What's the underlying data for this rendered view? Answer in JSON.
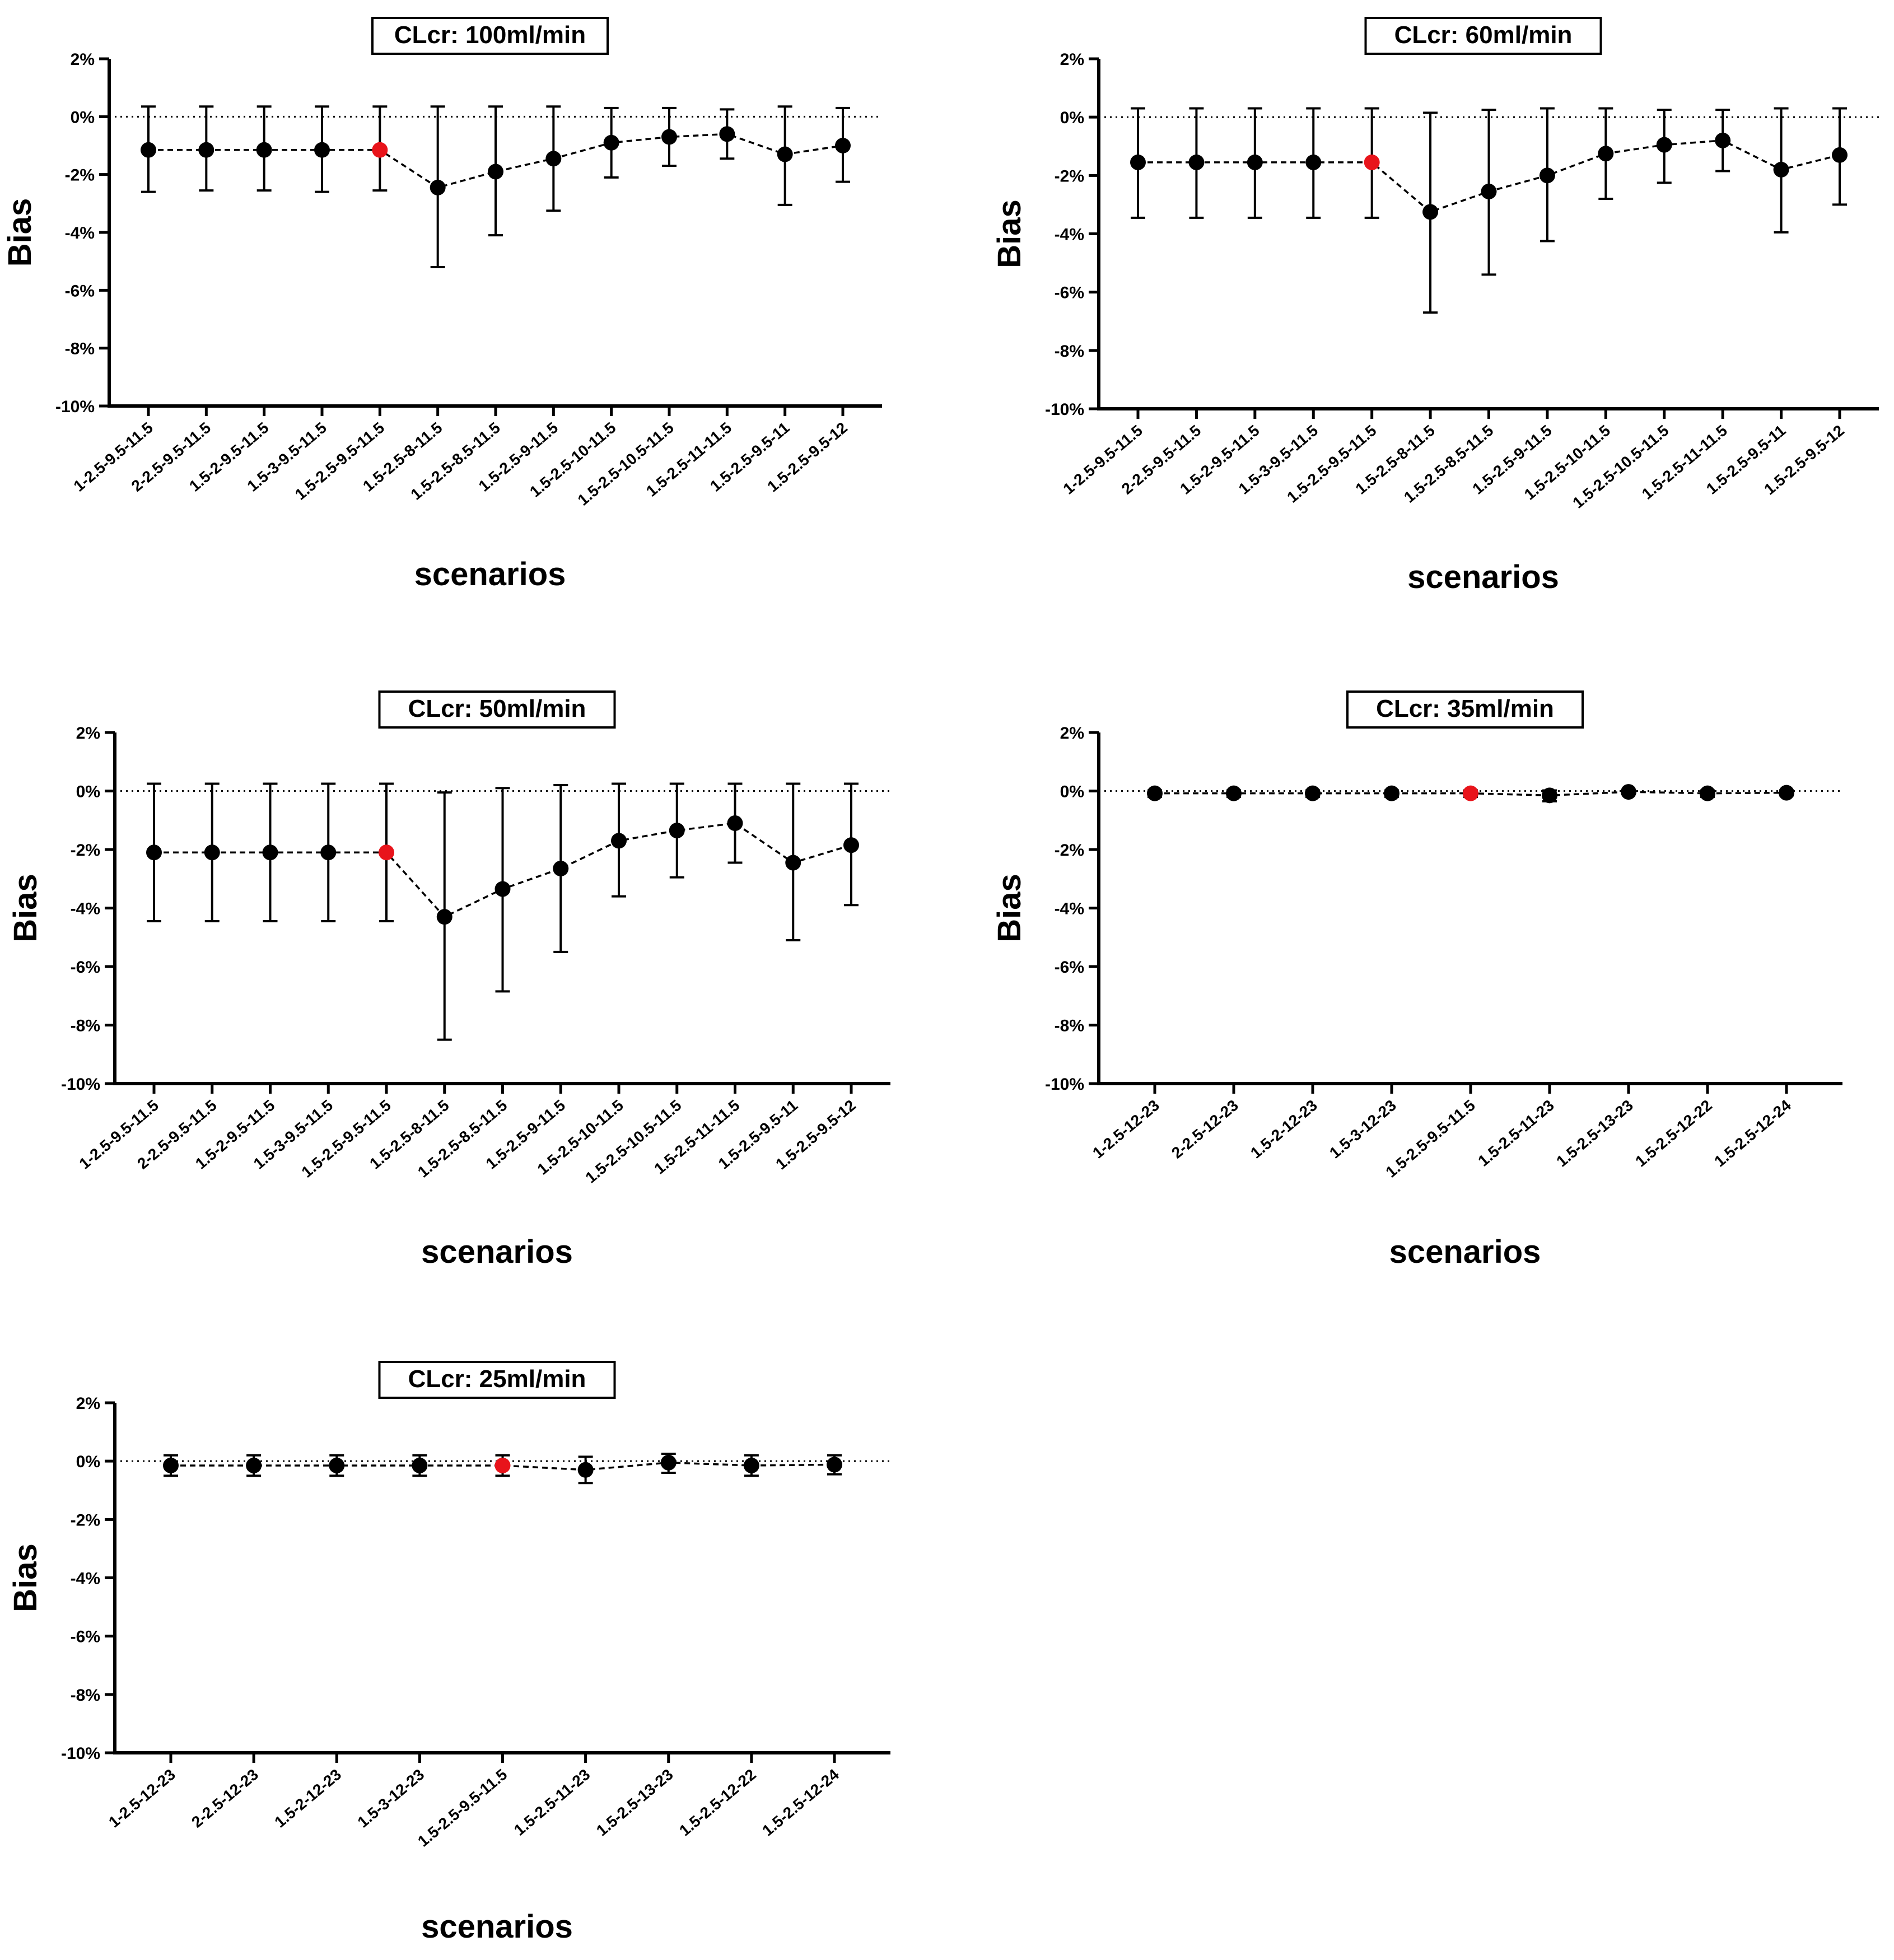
{
  "chart_data": [
    {
      "type": "scatter",
      "title": "CLcr: 100ml/min",
      "xlabel": "scenarios",
      "ylabel": "Bias",
      "ylim": [
        -10,
        2
      ],
      "yticks": [
        "2%",
        "0%",
        "-2%",
        "-4%",
        "-6%",
        "-8%",
        "-10%"
      ],
      "reference_line_y": 0,
      "highlight_index": 4,
      "highlight_color": "#e8141b",
      "point_color": "#000000",
      "categories": [
        "1-2.5-9.5-11.5",
        "2-2.5-9.5-11.5",
        "1.5-2-9.5-11.5",
        "1.5-3-9.5-11.5",
        "1.5-2.5-9.5-11.5",
        "1.5-2.5-8-11.5",
        "1.5-2.5-8.5-11.5",
        "1.5-2.5-9-11.5",
        "1.5-2.5-10-11.5",
        "1.5-2.5-10.5-11.5",
        "1.5-2.5-11-11.5",
        "1.5-2.5-9.5-11",
        "1.5-2.5-9.5-12"
      ],
      "values": [
        -1.15,
        -1.15,
        -1.15,
        -1.15,
        -1.15,
        -2.45,
        -1.9,
        -1.45,
        -0.9,
        -0.7,
        -0.6,
        -1.3,
        -1.0
      ],
      "err_low": [
        -2.6,
        -2.55,
        -2.55,
        -2.6,
        -2.55,
        -5.2,
        -4.1,
        -3.25,
        -2.1,
        -1.7,
        -1.45,
        -3.05,
        -2.25
      ],
      "err_high": [
        0.35,
        0.35,
        0.35,
        0.35,
        0.35,
        0.35,
        0.35,
        0.35,
        0.3,
        0.3,
        0.25,
        0.35,
        0.3
      ]
    },
    {
      "type": "scatter",
      "title": "CLcr: 60ml/min",
      "xlabel": "scenarios",
      "ylabel": "Bias",
      "ylim": [
        -10,
        2
      ],
      "yticks": [
        "2%",
        "0%",
        "-2%",
        "-4%",
        "-6%",
        "-8%",
        "-10%"
      ],
      "reference_line_y": 0,
      "highlight_index": 4,
      "highlight_color": "#e8141b",
      "point_color": "#000000",
      "categories": [
        "1-2.5-9.5-11.5",
        "2-2.5-9.5-11.5",
        "1.5-2-9.5-11.5",
        "1.5-3-9.5-11.5",
        "1.5-2.5-9.5-11.5",
        "1.5-2.5-8-11.5",
        "1.5-2.5-8.5-11.5",
        "1.5-2.5-9-11.5",
        "1.5-2.5-10-11.5",
        "1.5-2.5-10.5-11.5",
        "1.5-2.5-11-11.5",
        "1.5-2.5-9.5-11",
        "1.5-2.5-9.5-12"
      ],
      "values": [
        -1.55,
        -1.55,
        -1.55,
        -1.55,
        -1.55,
        -3.25,
        -2.55,
        -2.0,
        -1.25,
        -0.95,
        -0.8,
        -1.8,
        -1.3
      ],
      "err_low": [
        -3.45,
        -3.45,
        -3.45,
        -3.45,
        -3.45,
        -6.7,
        -5.4,
        -4.25,
        -2.8,
        -2.25,
        -1.85,
        -3.95,
        -3.0
      ],
      "err_high": [
        0.3,
        0.3,
        0.3,
        0.3,
        0.3,
        0.15,
        0.25,
        0.3,
        0.3,
        0.25,
        0.25,
        0.3,
        0.3
      ]
    },
    {
      "type": "scatter",
      "title": "CLcr: 50ml/min",
      "xlabel": "scenarios",
      "ylabel": "Bias",
      "ylim": [
        -10,
        2
      ],
      "yticks": [
        "2%",
        "0%",
        "-2%",
        "-4%",
        "-6%",
        "-8%",
        "-10%"
      ],
      "reference_line_y": 0,
      "highlight_index": 4,
      "highlight_color": "#e8141b",
      "point_color": "#000000",
      "categories": [
        "1-2.5-9.5-11.5",
        "2-2.5-9.5-11.5",
        "1.5-2-9.5-11.5",
        "1.5-3-9.5-11.5",
        "1.5-2.5-9.5-11.5",
        "1.5-2.5-8-11.5",
        "1.5-2.5-8.5-11.5",
        "1.5-2.5-9-11.5",
        "1.5-2.5-10-11.5",
        "1.5-2.5-10.5-11.5",
        "1.5-2.5-11-11.5",
        "1.5-2.5-9.5-11",
        "1.5-2.5-9.5-12"
      ],
      "values": [
        -2.1,
        -2.1,
        -2.1,
        -2.1,
        -2.1,
        -4.3,
        -3.35,
        -2.65,
        -1.7,
        -1.35,
        -1.1,
        -2.45,
        -1.85
      ],
      "err_low": [
        -4.45,
        -4.45,
        -4.45,
        -4.45,
        -4.45,
        -8.5,
        -6.85,
        -5.5,
        -3.6,
        -2.95,
        -2.45,
        -5.1,
        -3.9
      ],
      "err_high": [
        0.25,
        0.25,
        0.25,
        0.25,
        0.25,
        -0.05,
        0.1,
        0.2,
        0.25,
        0.25,
        0.25,
        0.25,
        0.25
      ]
    },
    {
      "type": "scatter",
      "title": "CLcr: 35ml/min",
      "xlabel": "scenarios",
      "ylabel": "Bias",
      "ylim": [
        -10,
        2
      ],
      "yticks": [
        "2%",
        "0%",
        "-2%",
        "-4%",
        "-6%",
        "-8%",
        "-10%"
      ],
      "reference_line_y": 0,
      "highlight_index": 4,
      "highlight_color": "#e8141b",
      "point_color": "#000000",
      "categories": [
        "1-2.5-12-23",
        "2-2.5-12-23",
        "1.5-2-12-23",
        "1.5-3-12-23",
        "1.5-2.5-9.5-11.5",
        "1.5-2.5-11-23",
        "1.5-2.5-13-23",
        "1.5-2.5-12-22",
        "1.5-2.5-12-24"
      ],
      "values": [
        -0.08,
        -0.08,
        -0.08,
        -0.08,
        -0.08,
        -0.15,
        -0.03,
        -0.08,
        -0.06
      ],
      "err_low": [
        -0.2,
        -0.2,
        -0.2,
        -0.2,
        -0.2,
        -0.35,
        -0.1,
        -0.2,
        -0.15
      ],
      "err_high": [
        0.02,
        0.02,
        0.02,
        0.02,
        0.02,
        0.02,
        0.02,
        0.02,
        0.02
      ]
    },
    {
      "type": "scatter",
      "title": "CLcr: 25ml/min",
      "xlabel": "scenarios",
      "ylabel": "Bias",
      "ylim": [
        -10,
        2
      ],
      "yticks": [
        "2%",
        "0%",
        "-2%",
        "-4%",
        "-6%",
        "-8%",
        "-10%"
      ],
      "reference_line_y": 0,
      "highlight_index": 4,
      "highlight_color": "#e8141b",
      "point_color": "#000000",
      "categories": [
        "1-2.5-12-23",
        "2-2.5-12-23",
        "1.5-2-12-23",
        "1.5-3-12-23",
        "1.5-2.5-9.5-11.5",
        "1.5-2.5-11-23",
        "1.5-2.5-13-23",
        "1.5-2.5-12-22",
        "1.5-2.5-12-24"
      ],
      "values": [
        -0.15,
        -0.15,
        -0.15,
        -0.15,
        -0.15,
        -0.3,
        -0.05,
        -0.15,
        -0.12
      ],
      "err_low": [
        -0.5,
        -0.5,
        -0.5,
        -0.5,
        -0.5,
        -0.75,
        -0.4,
        -0.5,
        -0.45
      ],
      "err_high": [
        0.2,
        0.2,
        0.2,
        0.2,
        0.2,
        0.15,
        0.25,
        0.2,
        0.2
      ]
    }
  ]
}
